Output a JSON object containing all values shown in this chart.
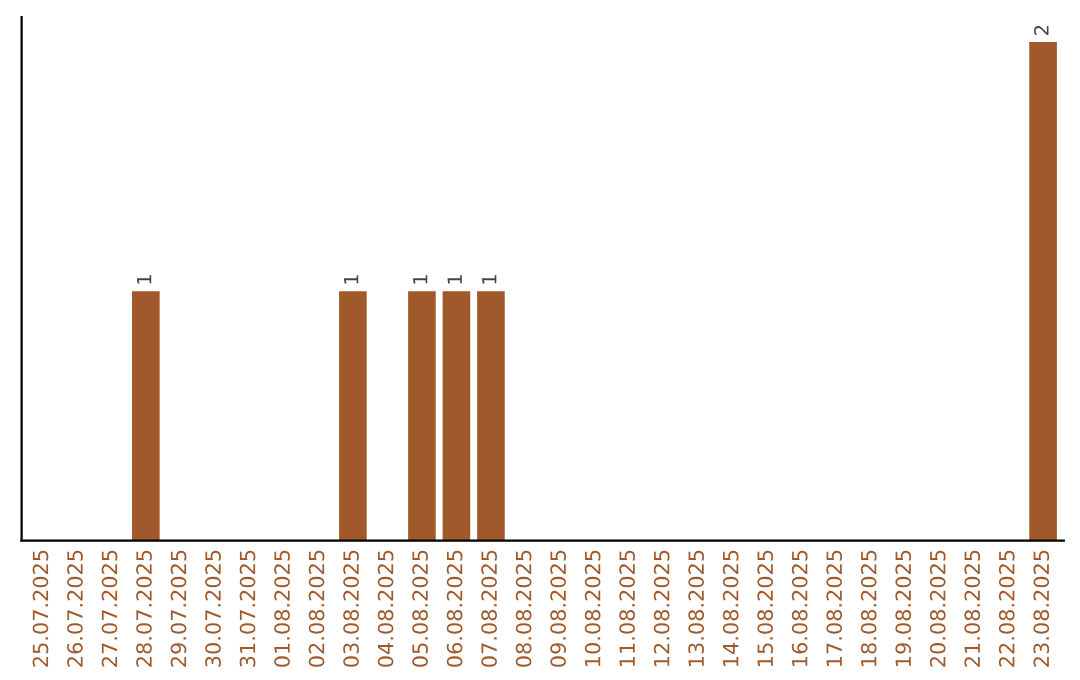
{
  "chart_data": {
    "type": "bar",
    "categories": [
      "25.07.2025",
      "26.07.2025",
      "27.07.2025",
      "28.07.2025",
      "29.07.2025",
      "30.07.2025",
      "31.07.2025",
      "01.08.2025",
      "02.08.2025",
      "03.08.2025",
      "04.08.2025",
      "05.08.2025",
      "06.08.2025",
      "07.08.2025",
      "08.08.2025",
      "09.08.2025",
      "10.08.2025",
      "11.08.2025",
      "12.08.2025",
      "13.08.2025",
      "14.08.2025",
      "15.08.2025",
      "16.08.2025",
      "17.08.2025",
      "18.08.2025",
      "19.08.2025",
      "20.08.2025",
      "21.08.2025",
      "22.08.2025",
      "23.08.2025"
    ],
    "values": [
      0,
      0,
      0,
      1,
      0,
      0,
      0,
      0,
      0,
      1,
      0,
      1,
      1,
      1,
      0,
      0,
      0,
      0,
      0,
      0,
      0,
      0,
      0,
      0,
      0,
      0,
      0,
      0,
      0,
      2
    ],
    "value_labels": [
      null,
      null,
      null,
      "1",
      null,
      null,
      null,
      null,
      null,
      "1",
      null,
      "1",
      "1",
      "1",
      null,
      null,
      null,
      null,
      null,
      null,
      null,
      null,
      null,
      null,
      null,
      null,
      null,
      null,
      null,
      "2"
    ],
    "color": "#a0592a",
    "grid": false,
    "legend": false
  }
}
